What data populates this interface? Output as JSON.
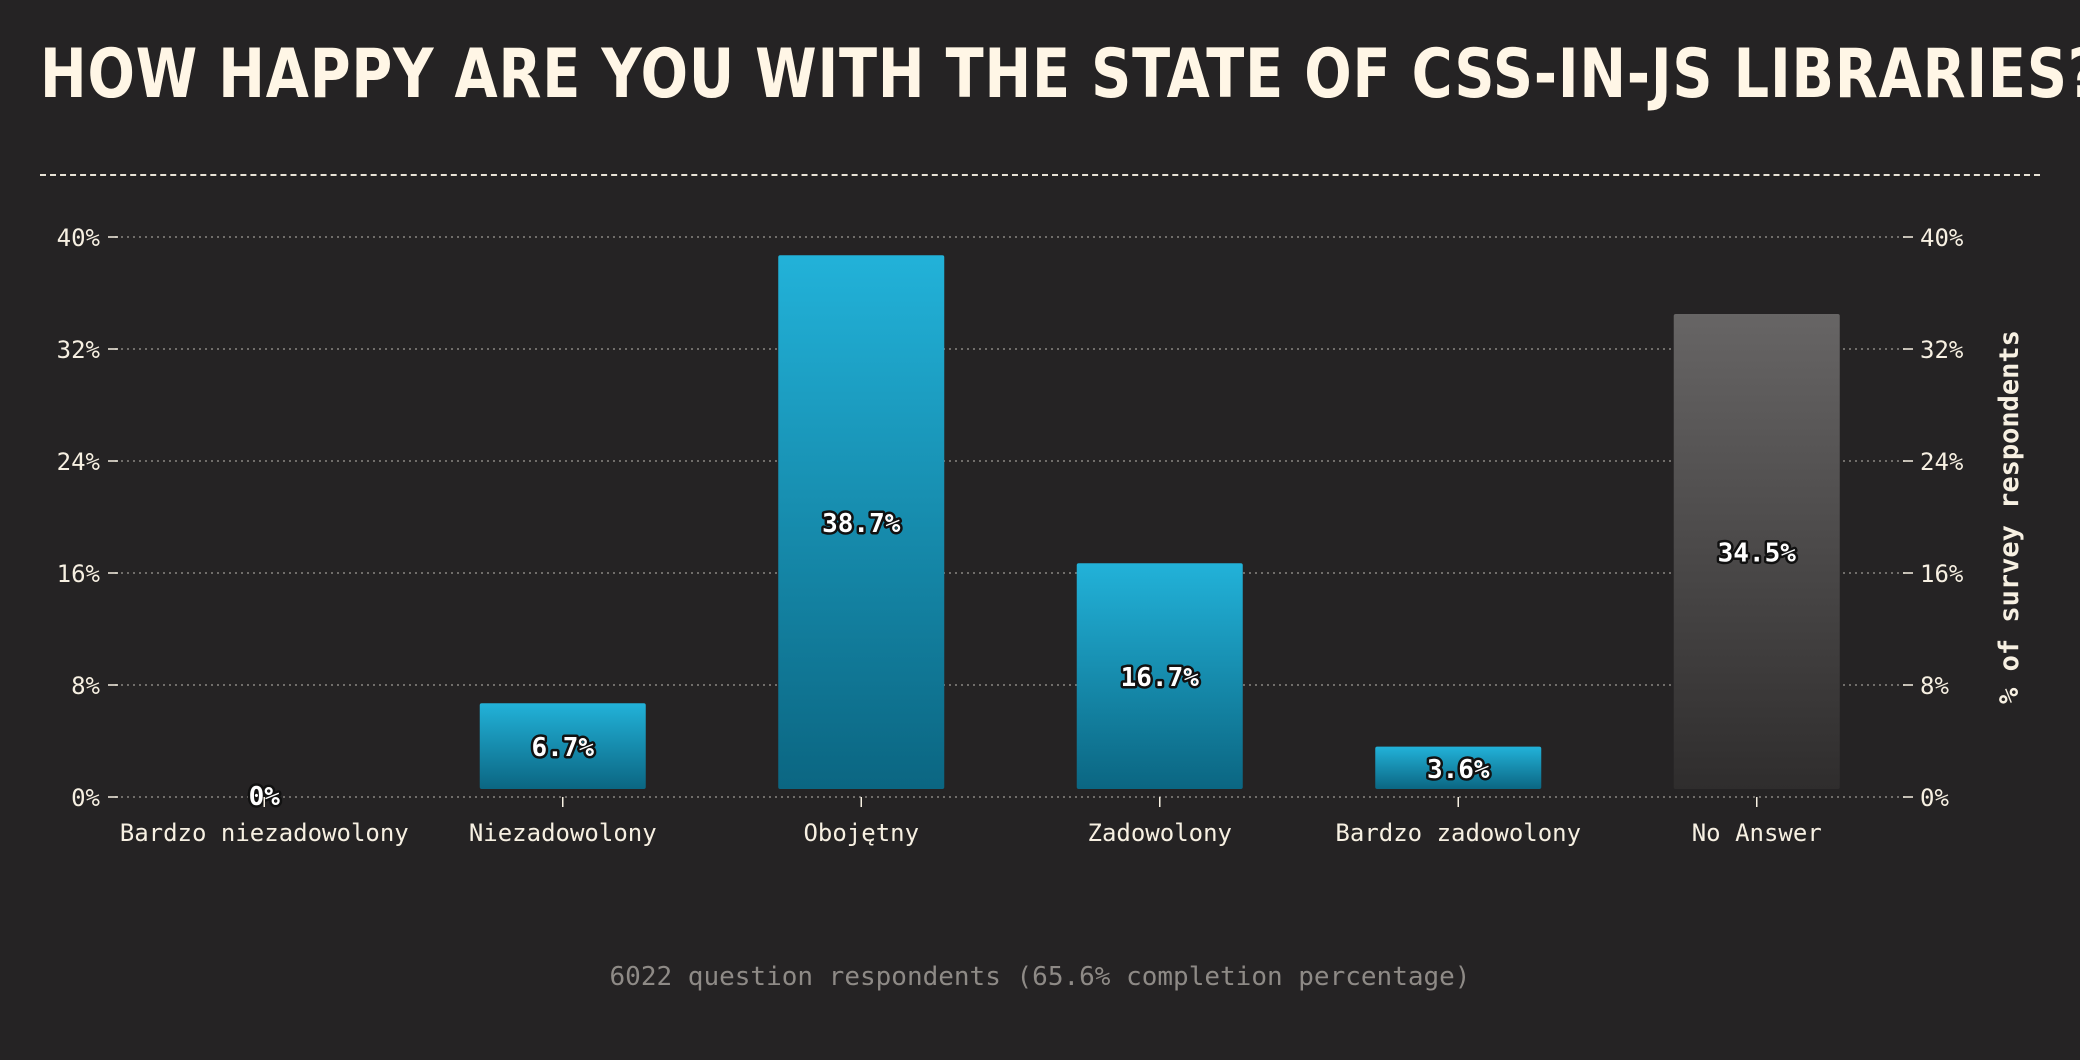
{
  "title": "HOW HAPPY ARE YOU WITH THE STATE OF CSS-IN-JS LIBRARIES?",
  "footer": "6022 question respondents (65.6% completion percentage)",
  "colors": {
    "background": "#252324",
    "text": "#f7f0e2",
    "bar_top": "#22b2d9",
    "bar_bottom": "#0b6682",
    "no_answer_top": "#676565",
    "no_answer_bottom": "#2f2d2d",
    "grid": "#8a8682"
  },
  "chart_data": {
    "type": "bar",
    "title": "HOW HAPPY ARE YOU WITH THE STATE OF CSS-IN-JS LIBRARIES?",
    "categories": [
      "Bardzo niezadowolony",
      "Niezadowolony",
      "Obojętny",
      "Zadowolony",
      "Bardzo zadowolony",
      "No Answer"
    ],
    "values": [
      0,
      6.7,
      38.7,
      16.7,
      3.6,
      34.5
    ],
    "value_labels": [
      "0%",
      "6.7%",
      "38.7%",
      "16.7%",
      "3.6%",
      "34.5%"
    ],
    "special_categories": [
      "No Answer"
    ],
    "xlabel": "",
    "ylabel": "% of survey respondents",
    "ylim": [
      0,
      40
    ],
    "yticks": [
      0,
      8,
      16,
      24,
      32,
      40
    ],
    "ytick_labels": [
      "0%",
      "8%",
      "16%",
      "24%",
      "32%",
      "40%"
    ],
    "y_axis_sides": [
      "left",
      "right"
    ],
    "grid": true,
    "legend": "none"
  }
}
